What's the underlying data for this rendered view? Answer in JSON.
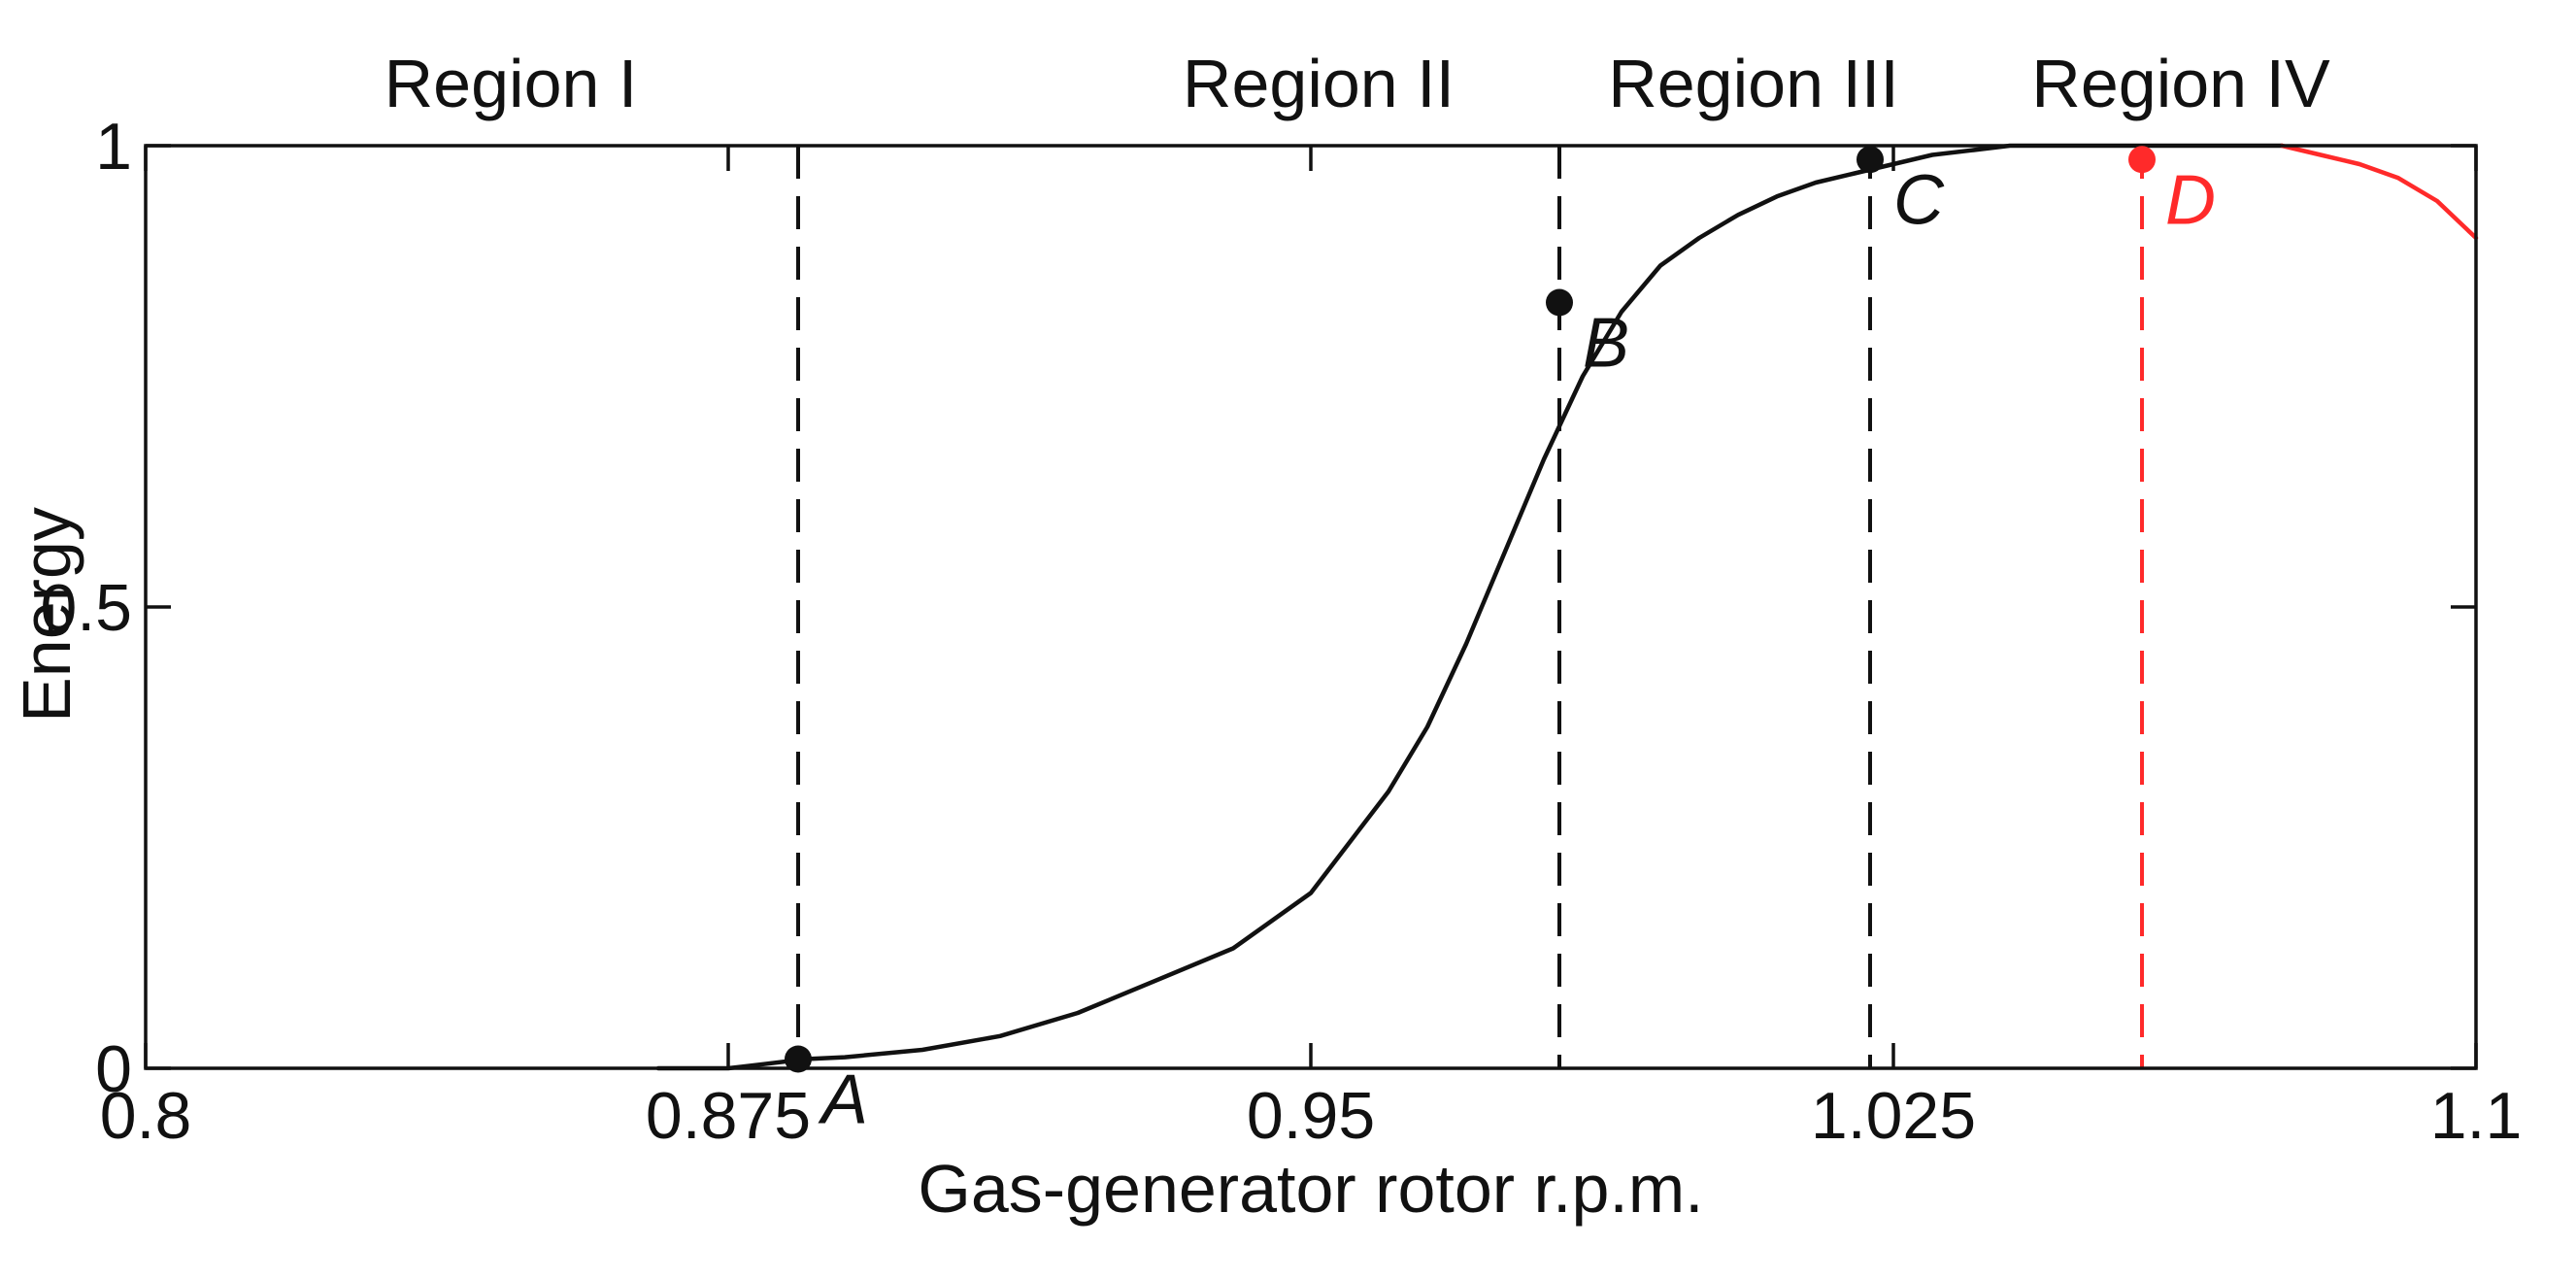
{
  "chart_data": {
    "type": "line",
    "title": "",
    "xlabel": "Gas-generator rotor r.p.m.",
    "ylabel": "Energy",
    "xlim": [
      0.8,
      1.1
    ],
    "ylim": [
      0,
      1
    ],
    "x_ticks": [
      {
        "value": 0.8,
        "label": "0.8"
      },
      {
        "value": 0.875,
        "label": "0.875"
      },
      {
        "value": 0.95,
        "label": "0.95"
      },
      {
        "value": 1.025,
        "label": "1.025"
      },
      {
        "value": 1.1,
        "label": "1.1"
      }
    ],
    "y_ticks": [
      {
        "value": 0,
        "label": "0"
      },
      {
        "value": 0.5,
        "label": "0.5"
      },
      {
        "value": 1,
        "label": "1"
      }
    ],
    "grid": false,
    "colors": {
      "main_curve": "#111111",
      "region_iv_curve": "#ff2a2a",
      "boundary_line": "#111111",
      "region_iv_boundary": "#ff2a2a"
    },
    "series": [
      {
        "color": "#111111",
        "style": "solid",
        "x": [
          0.866,
          0.875,
          0.88,
          0.885,
          0.89,
          0.9,
          0.91,
          0.92,
          0.93,
          0.94,
          0.95,
          0.96,
          0.965,
          0.97,
          0.975,
          0.98,
          0.985,
          0.99,
          0.995,
          1.0,
          1.005,
          1.01,
          1.015,
          1.02,
          1.025,
          1.03,
          1.035,
          1.04,
          1.05,
          1.06,
          1.075
        ],
        "y": [
          0.0,
          0.0,
          0.005,
          0.01,
          0.012,
          0.02,
          0.035,
          0.06,
          0.095,
          0.13,
          0.19,
          0.3,
          0.37,
          0.46,
          0.56,
          0.66,
          0.75,
          0.82,
          0.87,
          0.9,
          0.925,
          0.945,
          0.96,
          0.97,
          0.98,
          0.99,
          0.995,
          1.0,
          1.0,
          1.0,
          1.0
        ]
      },
      {
        "color": "#ff2a2a",
        "style": "solid",
        "x": [
          1.075,
          1.08,
          1.085,
          1.09,
          1.095,
          1.1
        ],
        "y": [
          1.0,
          0.99,
          0.98,
          0.965,
          0.94,
          0.9
        ]
      }
    ],
    "vertical_lines": [
      {
        "x": 0.884,
        "color": "#111111",
        "style": "dashed"
      },
      {
        "x": 0.982,
        "color": "#111111",
        "style": "dashed"
      },
      {
        "x": 1.022,
        "color": "#111111",
        "style": "dashed"
      },
      {
        "x": 1.057,
        "color": "#ff2a2a",
        "style": "dashed"
      }
    ],
    "points": [
      {
        "label": "A",
        "x": 0.884,
        "y": 0.01,
        "color": "#111111"
      },
      {
        "label": "B",
        "x": 0.982,
        "y": 0.83,
        "color": "#111111"
      },
      {
        "label": "C",
        "x": 1.022,
        "y": 0.985,
        "color": "#111111"
      },
      {
        "label": "D",
        "x": 1.057,
        "y": 0.985,
        "color": "#ff2a2a"
      }
    ],
    "regions": [
      {
        "label": "Region I",
        "center_x": 0.847
      },
      {
        "label": "Region II",
        "center_x": 0.951
      },
      {
        "label": "Region III",
        "center_x": 1.007
      },
      {
        "label": "Region IV",
        "center_x": 1.062
      }
    ]
  }
}
